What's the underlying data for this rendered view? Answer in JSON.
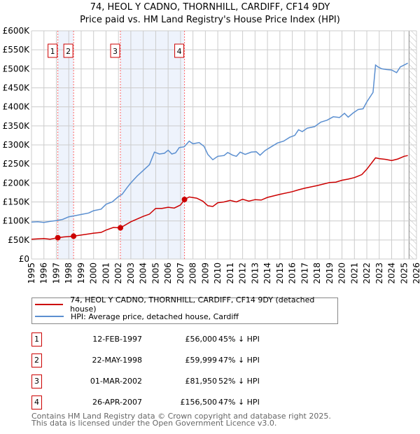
{
  "title_line1": "74, HEOL Y CADNO, THORNHILL, CARDIFF, CF14 9DY",
  "title_line2": "Price paid vs. HM Land Registry's House Price Index (HPI)",
  "colors": {
    "property": "#cc0000",
    "hpi": "#5b8fd0",
    "shade": "#eef3fc",
    "grid": "#cccccc"
  },
  "chart_data": {
    "type": "line",
    "title": "74, HEOL Y CADNO, THORNHILL, CARDIFF, CF14 9DY - Price paid vs. HM Land Registry's House Price Index (HPI)",
    "xlim": [
      1995,
      2026
    ],
    "ylim": [
      0,
      600000
    ],
    "x_ticks": [
      "1995",
      "1996",
      "1997",
      "1998",
      "1999",
      "2000",
      "2001",
      "2002",
      "2003",
      "2004",
      "2005",
      "2006",
      "2007",
      "2008",
      "2009",
      "2010",
      "2011",
      "2012",
      "2013",
      "2014",
      "2015",
      "2016",
      "2017",
      "2018",
      "2019",
      "2020",
      "2021",
      "2022",
      "2023",
      "2024",
      "2025",
      "2026"
    ],
    "y_ticks": [
      {
        "v": 0,
        "label": "£0"
      },
      {
        "v": 50000,
        "label": "£50K"
      },
      {
        "v": 100000,
        "label": "£100K"
      },
      {
        "v": 150000,
        "label": "£150K"
      },
      {
        "v": 200000,
        "label": "£200K"
      },
      {
        "v": 250000,
        "label": "£250K"
      },
      {
        "v": 300000,
        "label": "£300K"
      },
      {
        "v": 350000,
        "label": "£350K"
      },
      {
        "v": 400000,
        "label": "£400K"
      },
      {
        "v": 450000,
        "label": "£450K"
      },
      {
        "v": 500000,
        "label": "£500K"
      },
      {
        "v": 550000,
        "label": "£550K"
      },
      {
        "v": 600000,
        "label": "£600K"
      }
    ],
    "grid": true,
    "shaded_ranges": [
      [
        1997.12,
        1998.39
      ],
      [
        2002.16,
        2007.32
      ]
    ],
    "future_hatch_from": 2025.4,
    "series": [
      {
        "name": "74, HEOL Y CADNO, THORNHILL, CARDIFF, CF14 9DY (detached house)",
        "color": "#cc0000",
        "points": [
          [
            1995,
            52000
          ],
          [
            1996,
            54000
          ],
          [
            1996.5,
            52000
          ],
          [
            1997.12,
            56000
          ],
          [
            1997.6,
            58000
          ],
          [
            1998.39,
            59999
          ],
          [
            1999,
            63000
          ],
          [
            2000,
            68000
          ],
          [
            2000.6,
            70000
          ],
          [
            2001,
            76000
          ],
          [
            2001.6,
            83000
          ],
          [
            2002.16,
            81950
          ],
          [
            2003,
            98000
          ],
          [
            2004,
            112000
          ],
          [
            2004.5,
            118000
          ],
          [
            2005,
            133000
          ],
          [
            2005.5,
            133000
          ],
          [
            2006,
            136000
          ],
          [
            2006.5,
            134000
          ],
          [
            2007,
            142000
          ],
          [
            2007.32,
            156500
          ],
          [
            2007.7,
            163000
          ],
          [
            2008.3,
            160000
          ],
          [
            2008.8,
            152000
          ],
          [
            2009.2,
            140000
          ],
          [
            2009.6,
            138000
          ],
          [
            2010,
            148000
          ],
          [
            2010.5,
            150000
          ],
          [
            2011,
            154000
          ],
          [
            2011.5,
            150000
          ],
          [
            2012,
            157000
          ],
          [
            2012.5,
            152000
          ],
          [
            2013,
            156000
          ],
          [
            2013.5,
            155000
          ],
          [
            2014,
            162000
          ],
          [
            2015,
            170000
          ],
          [
            2016,
            177000
          ],
          [
            2016.5,
            182000
          ],
          [
            2017,
            186000
          ],
          [
            2018,
            193000
          ],
          [
            2019,
            201000
          ],
          [
            2019.5,
            202000
          ],
          [
            2020,
            207000
          ],
          [
            2020.5,
            210000
          ],
          [
            2021,
            214000
          ],
          [
            2021.6,
            222000
          ],
          [
            2022,
            236000
          ],
          [
            2022.7,
            266000
          ],
          [
            2023,
            264000
          ],
          [
            2023.5,
            262000
          ],
          [
            2024,
            259000
          ],
          [
            2024.5,
            263000
          ],
          [
            2025,
            270000
          ],
          [
            2025.3,
            272000
          ]
        ]
      },
      {
        "name": "HPI: Average price, detached house, Cardiff",
        "color": "#5b8fd0",
        "points": [
          [
            1995,
            97000
          ],
          [
            1995.5,
            98000
          ],
          [
            1996,
            96000
          ],
          [
            1996.5,
            99000
          ],
          [
            1997,
            101000
          ],
          [
            1997.5,
            104000
          ],
          [
            1998,
            111000
          ],
          [
            1998.5,
            114000
          ],
          [
            1999,
            117000
          ],
          [
            1999.6,
            121000
          ],
          [
            2000,
            127000
          ],
          [
            2000.6,
            131000
          ],
          [
            2001,
            144000
          ],
          [
            2001.5,
            150000
          ],
          [
            2002,
            164000
          ],
          [
            2002.3,
            170000
          ],
          [
            2002.7,
            188000
          ],
          [
            2003,
            200000
          ],
          [
            2003.5,
            218000
          ],
          [
            2004,
            233000
          ],
          [
            2004.5,
            248000
          ],
          [
            2004.9,
            281000
          ],
          [
            2005.3,
            276000
          ],
          [
            2005.7,
            278000
          ],
          [
            2006,
            286000
          ],
          [
            2006.3,
            276000
          ],
          [
            2006.6,
            279000
          ],
          [
            2006.9,
            293000
          ],
          [
            2007.3,
            295000
          ],
          [
            2007.7,
            310000
          ],
          [
            2008,
            303000
          ],
          [
            2008.5,
            306000
          ],
          [
            2008.9,
            296000
          ],
          [
            2009.2,
            275000
          ],
          [
            2009.6,
            261000
          ],
          [
            2010,
            270000
          ],
          [
            2010.5,
            272000
          ],
          [
            2010.8,
            280000
          ],
          [
            2011.2,
            273000
          ],
          [
            2011.5,
            270000
          ],
          [
            2011.8,
            281000
          ],
          [
            2012.2,
            275000
          ],
          [
            2012.7,
            281000
          ],
          [
            2013.1,
            282000
          ],
          [
            2013.4,
            273000
          ],
          [
            2013.8,
            285000
          ],
          [
            2014.2,
            293000
          ],
          [
            2014.8,
            305000
          ],
          [
            2015.3,
            310000
          ],
          [
            2015.8,
            320000
          ],
          [
            2016.2,
            325000
          ],
          [
            2016.5,
            340000
          ],
          [
            2016.8,
            335000
          ],
          [
            2017.2,
            344000
          ],
          [
            2017.8,
            348000
          ],
          [
            2018.3,
            360000
          ],
          [
            2018.8,
            365000
          ],
          [
            2019.3,
            374000
          ],
          [
            2019.8,
            372000
          ],
          [
            2020.2,
            383000
          ],
          [
            2020.5,
            373000
          ],
          [
            2020.9,
            384000
          ],
          [
            2021.3,
            393000
          ],
          [
            2021.7,
            395000
          ],
          [
            2022,
            413000
          ],
          [
            2022.5,
            438000
          ],
          [
            2022.7,
            510000
          ],
          [
            2022.9,
            505000
          ],
          [
            2023.2,
            500000
          ],
          [
            2023.6,
            498000
          ],
          [
            2024,
            497000
          ],
          [
            2024.4,
            490000
          ],
          [
            2024.7,
            505000
          ],
          [
            2025,
            510000
          ],
          [
            2025.3,
            515000
          ]
        ]
      }
    ],
    "sales": [
      {
        "n": "1",
        "x": 1997.12,
        "y": 56000
      },
      {
        "n": "2",
        "x": 1998.39,
        "y": 59999
      },
      {
        "n": "3",
        "x": 2002.16,
        "y": 81950
      },
      {
        "n": "4",
        "x": 2007.32,
        "y": 156500
      }
    ]
  },
  "legend": {
    "property": "74, HEOL Y CADNO, THORNHILL, CARDIFF, CF14 9DY (detached house)",
    "hpi": "HPI: Average price, detached house, Cardiff"
  },
  "transactions": [
    {
      "n": "1",
      "date": "12-FEB-1997",
      "price": "£56,000",
      "hpi": "45% ↓ HPI"
    },
    {
      "n": "2",
      "date": "22-MAY-1998",
      "price": "£59,999",
      "hpi": "47% ↓ HPI"
    },
    {
      "n": "3",
      "date": "01-MAR-2002",
      "price": "£81,950",
      "hpi": "52% ↓ HPI"
    },
    {
      "n": "4",
      "date": "26-APR-2007",
      "price": "£156,500",
      "hpi": "47% ↓ HPI"
    }
  ],
  "footer": {
    "line1": "Contains HM Land Registry data © Crown copyright and database right 2025.",
    "line2": "This data is licensed under the Open Government Licence v3.0."
  }
}
